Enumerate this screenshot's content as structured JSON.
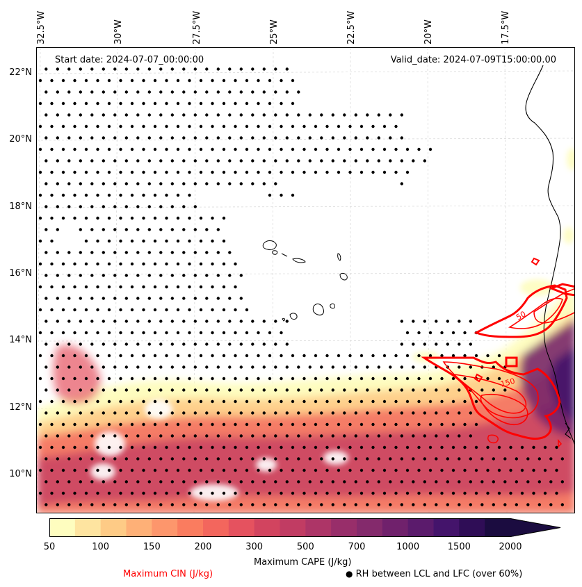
{
  "map": {
    "title_start": "Start date: 2024-07-07_00:00:00",
    "title_valid": "Valid_date: 2024-07-09T15:00:00.00",
    "longitude_labels": [
      "32.5°W",
      "30°W",
      "27.5°W",
      "25°W",
      "22.5°W",
      "20°W",
      "17.5°W"
    ],
    "latitude_labels": [
      "22°N",
      "20°N",
      "18°N",
      "16°N",
      "14°N",
      "12°N",
      "10°N"
    ],
    "cin_contour_labels": [
      "50",
      "150"
    ]
  },
  "colorbar": {
    "label": "Maximum CAPE (J/kg)",
    "ticks": [
      "50",
      "100",
      "150",
      "200",
      "300",
      "500",
      "700",
      "1000",
      "1500",
      "2000"
    ],
    "colors": [
      "#fefdbf",
      "#fee4a0",
      "#fecb86",
      "#feb077",
      "#fd966c",
      "#fa7c5f",
      "#f3665d",
      "#e5525f",
      "#d2445f",
      "#c13c63",
      "#ad3567",
      "#982e6a",
      "#842a6c",
      "#70216c",
      "#5b1b6c",
      "#44146b",
      "#2f0d56",
      "#1b0c40"
    ]
  },
  "legend": {
    "cin_label": "Maximum CIN (J/kg)",
    "rh_label": "RH between LCL and LFC (over 60%)",
    "cin_color": "#ff0000"
  }
}
